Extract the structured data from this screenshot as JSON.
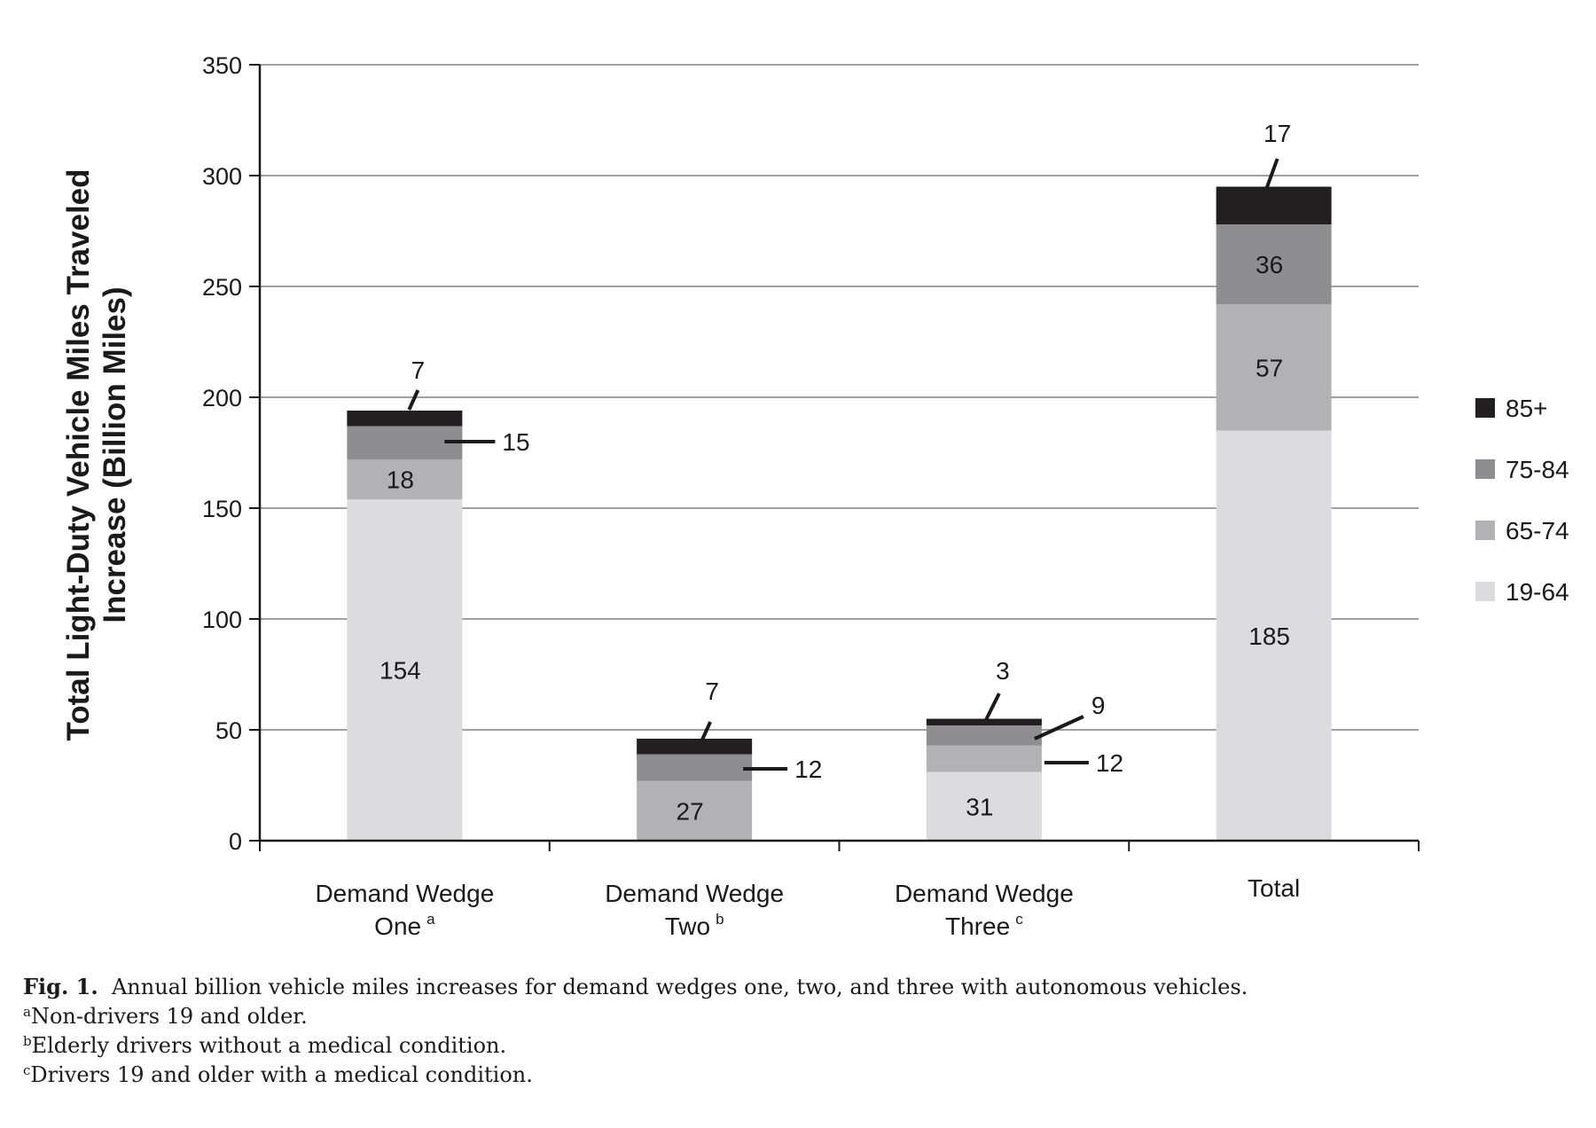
{
  "chart_data": {
    "type": "bar",
    "stacked": true,
    "ylabel_line1": "Total Light-Duty Vehicle Miles Traveled",
    "ylabel_line2": "Increase (Billion Miles)",
    "ylim": [
      0,
      350
    ],
    "yticks": [
      "0",
      "50",
      "100",
      "150",
      "200",
      "250",
      "300",
      "350"
    ],
    "grid": true,
    "legend_position": "right",
    "categories": [
      {
        "line1": "Demand Wedge",
        "line2": "One",
        "sup": "a"
      },
      {
        "line1": "Demand Wedge",
        "line2": "Two",
        "sup": "b"
      },
      {
        "line1": "Demand Wedge",
        "line2": "Three",
        "sup": "c"
      },
      {
        "line1": "Total",
        "line2": "",
        "sup": ""
      }
    ],
    "series": [
      {
        "name": "19-64",
        "color": "#dcdcde",
        "values": [
          154,
          0,
          31,
          185
        ]
      },
      {
        "name": "65-74",
        "color": "#b2b2b4",
        "values": [
          18,
          27,
          12,
          57
        ]
      },
      {
        "name": "75-84",
        "color": "#8e8e90",
        "values": [
          15,
          12,
          9,
          36
        ]
      },
      {
        "name": "85+",
        "color": "#231f20",
        "values": [
          7,
          7,
          3,
          17
        ]
      }
    ],
    "data_labels": [
      [
        "154",
        "18",
        "15",
        "7"
      ],
      [
        "",
        "27",
        "12",
        "7"
      ],
      [
        "31",
        "12",
        "9",
        "3"
      ],
      [
        "185",
        "57",
        "36",
        "17"
      ]
    ],
    "legend_order": [
      "85+",
      "75-84",
      "65-74",
      "19-64"
    ]
  },
  "caption": {
    "fig_label": "Fig. 1.",
    "text": "Annual billion vehicle miles increases for demand wedges one, two, and three with autonomous vehicles.",
    "notes": [
      {
        "mark": "a",
        "text": "Non-drivers 19 and older."
      },
      {
        "mark": "b",
        "text": "Elderly drivers without a medical condition."
      },
      {
        "mark": "c",
        "text": "Drivers 19 and older with a medical condition."
      }
    ]
  }
}
